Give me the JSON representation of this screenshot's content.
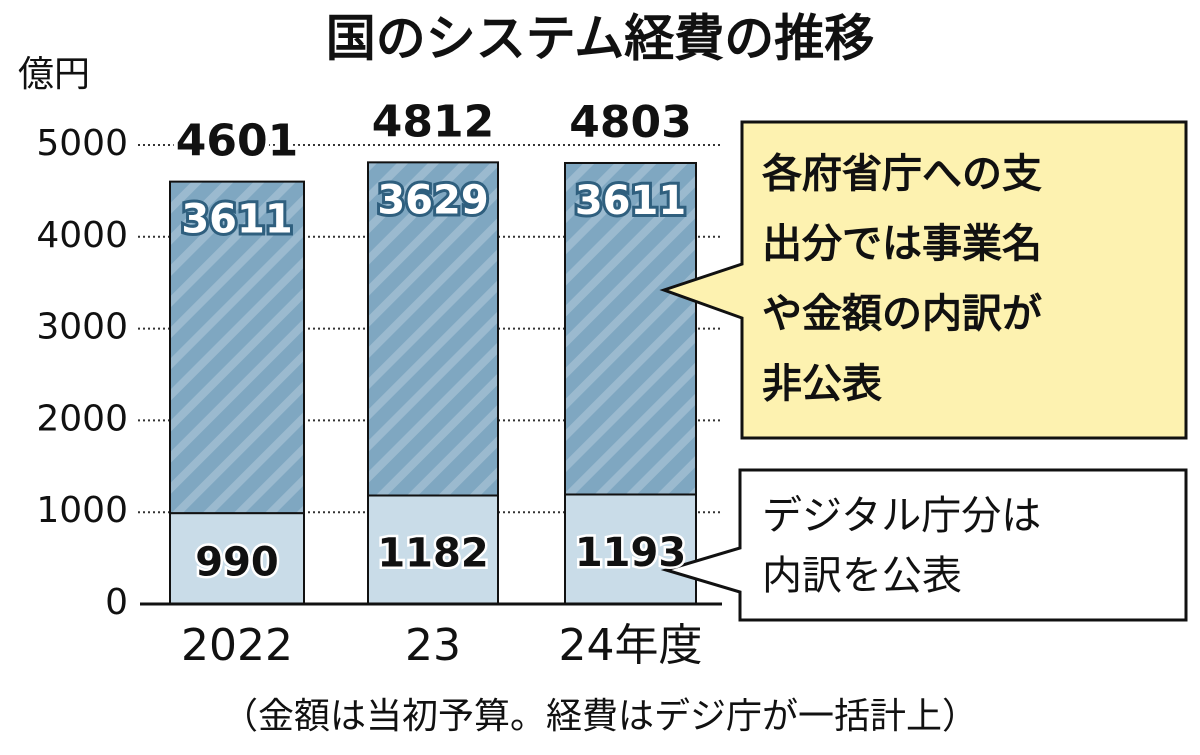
{
  "chart_data": {
    "type": "stacked-bar",
    "title": "国のシステム経費の推移",
    "y_unit": "億円",
    "categories": [
      "2022",
      "23",
      "24年度"
    ],
    "series": [
      {
        "color": "#c9dce8",
        "values": [
          990,
          1182,
          1193
        ]
      },
      {
        "color": "#7fa7c1",
        "values": [
          3611,
          3629,
          3611
        ]
      }
    ],
    "totals": [
      4601,
      4812,
      4803
    ],
    "ylim": [
      0,
      5000
    ],
    "yticks": [
      0,
      1000,
      2000,
      3000,
      4000,
      5000
    ],
    "grid": true,
    "annotations": [
      {
        "lines": [
          "各府省庁への支",
          "出分では事業名",
          "や金額の内訳が",
          "非公表"
        ]
      },
      {
        "lines": [
          "デジタル庁分は",
          "内訳を公表"
        ]
      }
    ],
    "footnote": "（金額は当初予算。経費はデジ庁が一括計上）"
  }
}
